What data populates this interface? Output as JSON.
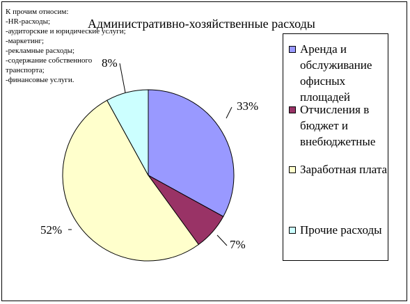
{
  "chart_data": {
    "type": "pie",
    "title": "Административно-хозяйственные расходы",
    "categories": [
      "Аренда и обслуживание офисных площадей",
      "Отчисления в бюджет и внебюджетные",
      "Заработная плата",
      "Прочие расходы"
    ],
    "values": [
      33,
      7,
      52,
      8
    ],
    "labels": [
      "33%",
      "7%",
      "52%",
      "8%"
    ],
    "colors": [
      "#9999ff",
      "#993366",
      "#ffffcc",
      "#ccffff"
    ],
    "legend_position": "right"
  },
  "note": {
    "lines": [
      "К прочим относим:",
      "-HR-расходы;",
      "-аудиторские и юридические услуги;",
      "-маркетинг;",
      "-рекламные расходы;",
      "-содержание собственного",
      "транспорта;",
      "-финансовые услуги."
    ]
  }
}
